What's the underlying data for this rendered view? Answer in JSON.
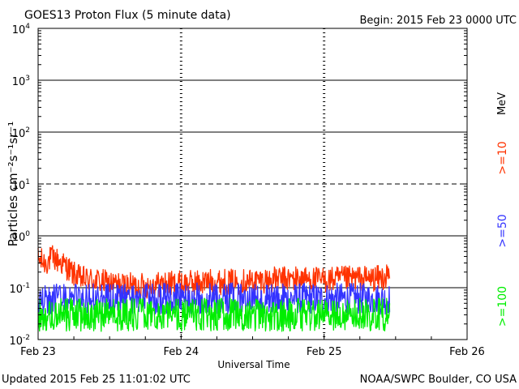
{
  "header": {
    "title": "GOES13 Proton Flux (5 minute data)",
    "begin": "Begin: 2015 Feb 23 0000 UTC"
  },
  "footer": {
    "updated": "Updated 2015 Feb 25 11:01:02 UTC",
    "credit": "NOAA/SWPC Boulder, CO USA"
  },
  "legend": {
    "unit": "MeV",
    "entries": [
      {
        "label": ">=10",
        "color": "#ff3300"
      },
      {
        "label": ">=50",
        "color": "#3333ff"
      },
      {
        "label": ">=100",
        "color": "#00ee00"
      }
    ]
  },
  "chart_data": {
    "type": "line",
    "title": "GOES13 Proton Flux (5 minute data)",
    "xlabel": "Universal Time",
    "ylabel": "Particles cm⁻²s⁻¹sr⁻¹",
    "yscale": "log",
    "ylim": [
      0.01,
      10000
    ],
    "xlim": [
      0,
      3
    ],
    "x_unit": "days since 2015 Feb 23 0000 UTC",
    "x_ticks": [
      {
        "value": 0,
        "label": "Feb 23"
      },
      {
        "value": 1,
        "label": "Feb 24"
      },
      {
        "value": 2,
        "label": "Feb 25"
      },
      {
        "value": 3,
        "label": "Feb 26"
      }
    ],
    "y_ticks": [
      {
        "exp": -2,
        "base": "10",
        "sup": "-2"
      },
      {
        "exp": -1,
        "base": "10",
        "sup": "-1"
      },
      {
        "exp": 0,
        "base": "10",
        "sup": "0"
      },
      {
        "exp": 1,
        "base": "10",
        "sup": "1"
      },
      {
        "exp": 2,
        "base": "10",
        "sup": "2"
      },
      {
        "exp": 3,
        "base": "10",
        "sup": "3"
      },
      {
        "exp": 4,
        "base": "10",
        "sup": "4"
      }
    ],
    "reference_lines": [
      {
        "value": 10,
        "style": "dashed"
      }
    ],
    "series": [
      {
        "name": ">=10 MeV",
        "color": "#ff3300",
        "x": [
          0.0,
          0.05,
          0.1,
          0.15,
          0.2,
          0.25,
          0.3,
          0.4,
          0.5,
          0.6,
          0.75,
          0.9,
          1.0,
          1.2,
          1.4,
          1.6,
          1.8,
          2.0,
          2.2,
          2.35,
          2.46
        ],
        "y": [
          0.35,
          0.3,
          0.38,
          0.32,
          0.25,
          0.18,
          0.15,
          0.14,
          0.12,
          0.11,
          0.11,
          0.12,
          0.12,
          0.13,
          0.13,
          0.14,
          0.15,
          0.14,
          0.15,
          0.15,
          0.16
        ],
        "amp": 0.25
      },
      {
        "name": ">=50 MeV",
        "color": "#3333ff",
        "x": [
          0.0,
          0.3,
          0.6,
          1.0,
          1.4,
          1.8,
          2.2,
          2.46
        ],
        "y": [
          0.058,
          0.06,
          0.06,
          0.062,
          0.062,
          0.062,
          0.062,
          0.06
        ],
        "amp": 0.3
      },
      {
        "name": ">=100 MeV",
        "color": "#00ee00",
        "x": [
          0.0,
          0.5,
          1.0,
          1.5,
          2.0,
          2.46
        ],
        "y": [
          0.03,
          0.03,
          0.03,
          0.03,
          0.03,
          0.03
        ],
        "amp": 0.32
      }
    ]
  }
}
